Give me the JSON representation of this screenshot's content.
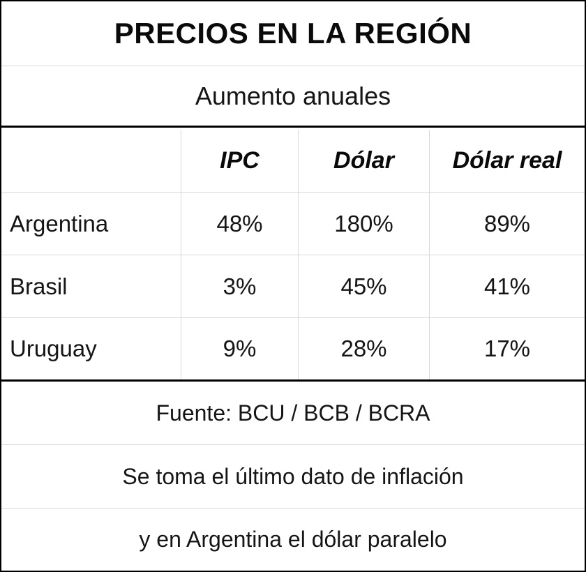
{
  "title": "PRECIOS EN LA REGIÓN",
  "subtitle": "Aumento anuales",
  "chart_data": {
    "type": "table",
    "title": "PRECIOS EN LA REGIÓN",
    "subtitle": "Aumento anuales",
    "columns": [
      "",
      "IPC",
      "Dólar",
      "Dólar real"
    ],
    "rows": [
      {
        "country": "Argentina",
        "ipc": "48%",
        "dolar": "180%",
        "dolar_real": "89%"
      },
      {
        "country": "Brasil",
        "ipc": "3%",
        "dolar": "45%",
        "dolar_real": "41%"
      },
      {
        "country": "Uruguay",
        "ipc": "9%",
        "dolar": "28%",
        "dolar_real": "17%"
      }
    ]
  },
  "footer": {
    "source": "Fuente: BCU / BCB / BCRA",
    "note_line1": "Se toma el último dato de inflación",
    "note_line2": "y en Argentina el dólar paralelo"
  }
}
